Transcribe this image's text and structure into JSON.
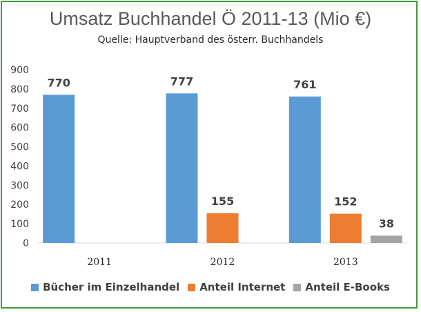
{
  "chart_data": {
    "type": "bar",
    "title": "Umsatz Buchhandel  Ö 2011-13 (Mio €)",
    "subtitle": "Quelle: Hauptverband des österr. Buchhandels",
    "categories": [
      "2011",
      "2012",
      "2013"
    ],
    "series": [
      {
        "name": "Bücher im Einzelhandel",
        "color": "#5b9bd5",
        "values": [
          770,
          777,
          761
        ]
      },
      {
        "name": "Anteil Internet",
        "color": "#ed7d31",
        "values": [
          null,
          155,
          152
        ]
      },
      {
        "name": "Anteil E-Books",
        "color": "#a5a5a5",
        "values": [
          null,
          null,
          38
        ]
      }
    ],
    "yticks": [
      "0",
      "100",
      "200",
      "300",
      "400",
      "500",
      "600",
      "700",
      "800",
      "900"
    ],
    "ylim": [
      0,
      900
    ],
    "grid": false,
    "legend": "bottom",
    "xlabel": "",
    "ylabel": ""
  },
  "frame_color": "#3f9a3c"
}
